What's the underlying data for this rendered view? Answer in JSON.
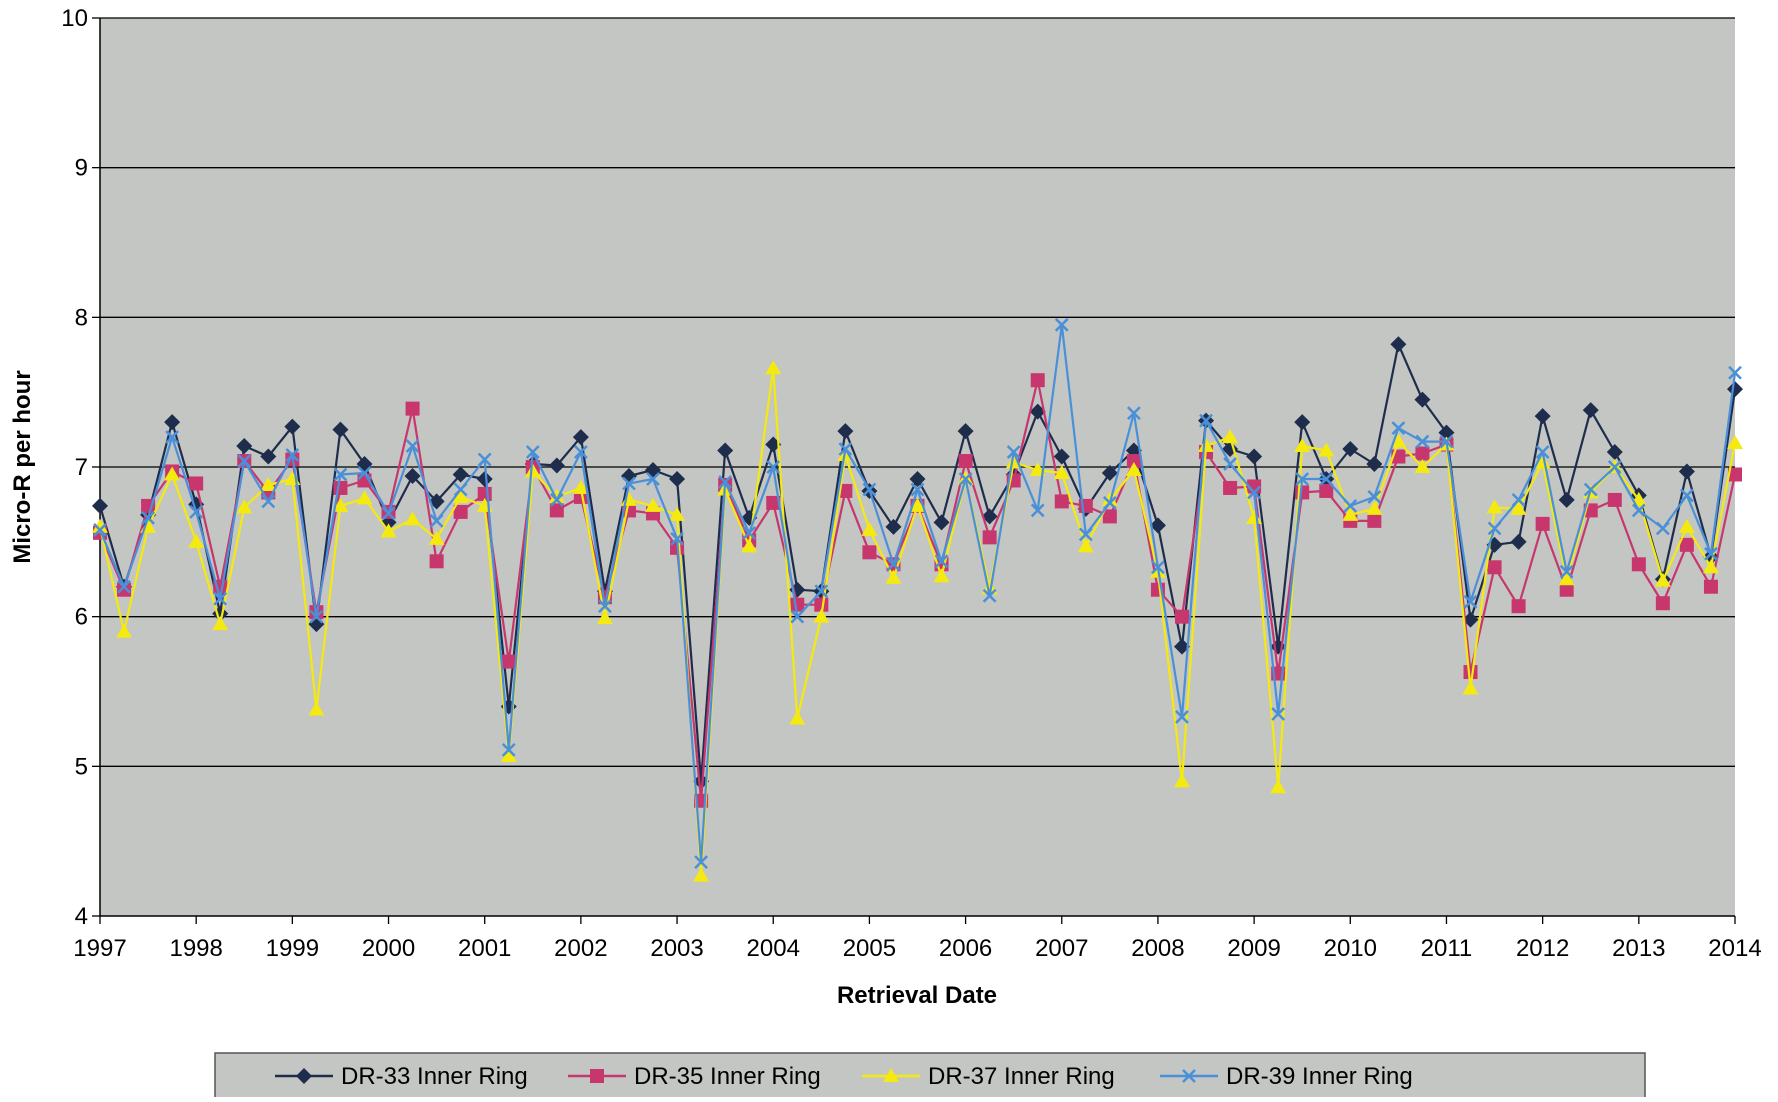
{
  "chart_data": {
    "type": "line",
    "title": "",
    "xlabel": "Retrieval Date",
    "ylabel": "Micro-R per hour",
    "xlim": [
      1997,
      2014
    ],
    "ylim": [
      4,
      10
    ],
    "x_ticks": [
      "1997",
      "1998",
      "1999",
      "2000",
      "2001",
      "2002",
      "2003",
      "2004",
      "2005",
      "2006",
      "2007",
      "2008",
      "2009",
      "2010",
      "2011",
      "2012",
      "2013",
      "2014"
    ],
    "y_ticks": [
      "4",
      "5",
      "6",
      "7",
      "8",
      "9",
      "10"
    ],
    "grid": "horizontal",
    "legend_position": "bottom",
    "x": [
      1997.0,
      1997.25,
      1997.5,
      1997.75,
      1998.0,
      1998.25,
      1998.5,
      1998.75,
      1999.0,
      1999.25,
      1999.5,
      1999.75,
      2000.0,
      2000.25,
      2000.5,
      2000.75,
      2001.0,
      2001.25,
      2001.5,
      2001.75,
      2002.0,
      2002.25,
      2002.5,
      2002.75,
      2003.0,
      2003.25,
      2003.5,
      2003.75,
      2004.0,
      2004.25,
      2004.5,
      2004.75,
      2005.0,
      2005.25,
      2005.5,
      2005.75,
      2006.0,
      2006.25,
      2006.5,
      2006.75,
      2007.0,
      2007.25,
      2007.5,
      2007.75,
      2008.0,
      2008.25,
      2008.5,
      2008.75,
      2009.0,
      2009.25,
      2009.5,
      2009.75,
      2010.0,
      2010.25,
      2010.5,
      2010.75,
      2011.0,
      2011.25,
      2011.5,
      2011.75,
      2012.0,
      2012.25,
      2012.5,
      2012.75,
      2013.0,
      2013.25,
      2013.5,
      2013.75,
      2014.0
    ],
    "series": [
      {
        "name": "DR-33 Inner Ring",
        "color": "#1f2d4d",
        "marker": "diamond",
        "values": [
          6.74,
          6.2,
          6.68,
          7.3,
          6.75,
          6.02,
          7.14,
          7.07,
          7.27,
          5.95,
          7.25,
          7.02,
          6.63,
          6.94,
          6.77,
          6.95,
          6.92,
          5.4,
          7.02,
          7.01,
          7.2,
          6.17,
          6.94,
          6.98,
          6.92,
          4.9,
          7.11,
          6.66,
          7.15,
          6.18,
          6.17,
          7.24,
          6.84,
          6.6,
          6.92,
          6.63,
          7.24,
          6.67,
          6.95,
          7.37,
          7.07,
          6.72,
          6.96,
          7.11,
          6.61,
          5.8,
          7.31,
          7.12,
          7.07,
          5.8,
          7.3,
          6.92,
          7.12,
          7.02,
          7.82,
          7.45,
          7.23,
          5.98,
          6.48,
          6.5,
          7.34,
          6.78,
          7.38,
          7.1,
          6.81,
          6.25,
          6.97,
          6.4,
          7.52
        ]
      },
      {
        "name": "DR-35 Inner Ring",
        "color": "#c8366e",
        "marker": "square",
        "values": [
          6.56,
          6.18,
          6.74,
          6.97,
          6.89,
          6.2,
          7.04,
          6.83,
          7.05,
          6.03,
          6.86,
          6.91,
          6.7,
          7.39,
          6.37,
          6.7,
          6.82,
          5.7,
          7.0,
          6.71,
          6.8,
          6.13,
          6.71,
          6.69,
          6.46,
          4.77,
          6.88,
          6.51,
          6.76,
          6.08,
          6.08,
          6.84,
          6.43,
          6.35,
          6.74,
          6.35,
          7.04,
          6.53,
          6.91,
          7.58,
          6.77,
          6.74,
          6.67,
          7.04,
          6.18,
          6.0,
          7.1,
          6.86,
          6.87,
          5.62,
          6.83,
          6.84,
          6.64,
          6.64,
          7.07,
          7.09,
          7.15,
          5.63,
          6.33,
          6.07,
          6.62,
          6.18,
          6.71,
          6.78,
          6.35,
          6.09,
          6.48,
          6.2,
          6.95
        ]
      },
      {
        "name": "DR-37 Inner Ring",
        "color": "#f5ea0f",
        "marker": "triangle",
        "values": [
          6.6,
          5.9,
          6.6,
          6.95,
          6.5,
          5.95,
          6.73,
          6.88,
          6.92,
          5.38,
          6.74,
          6.79,
          6.57,
          6.65,
          6.52,
          6.8,
          6.74,
          5.07,
          6.97,
          6.8,
          6.86,
          5.99,
          6.78,
          6.74,
          6.68,
          4.27,
          6.85,
          6.47,
          7.66,
          5.32,
          6.0,
          7.08,
          6.58,
          6.26,
          6.74,
          6.27,
          6.92,
          6.19,
          7.03,
          6.98,
          6.96,
          6.47,
          6.78,
          6.98,
          6.3,
          4.9,
          7.14,
          7.2,
          6.66,
          4.86,
          7.14,
          7.11,
          6.68,
          6.72,
          7.17,
          7.0,
          7.15,
          5.52,
          6.73,
          6.72,
          7.03,
          6.25,
          6.83,
          7.0,
          6.78,
          6.24,
          6.6,
          6.33,
          7.16
        ]
      },
      {
        "name": "DR-39 Inner Ring",
        "color": "#4a90d9",
        "marker": "x",
        "values": [
          6.58,
          6.2,
          6.66,
          7.2,
          6.7,
          6.12,
          7.04,
          6.77,
          7.08,
          6.0,
          6.95,
          6.96,
          6.69,
          7.14,
          6.64,
          6.85,
          7.05,
          5.11,
          7.1,
          6.78,
          7.1,
          6.07,
          6.89,
          6.92,
          6.52,
          4.36,
          6.9,
          6.56,
          7.0,
          6.0,
          6.17,
          7.12,
          6.85,
          6.35,
          6.85,
          6.37,
          6.92,
          6.14,
          7.1,
          6.71,
          7.95,
          6.55,
          6.76,
          7.36,
          6.33,
          5.33,
          7.31,
          7.02,
          6.83,
          5.35,
          6.92,
          6.92,
          6.74,
          6.8,
          7.26,
          7.17,
          7.17,
          6.1,
          6.59,
          6.78,
          7.1,
          6.3,
          6.85,
          7.0,
          6.71,
          6.59,
          6.81,
          6.42,
          7.63
        ]
      }
    ]
  }
}
